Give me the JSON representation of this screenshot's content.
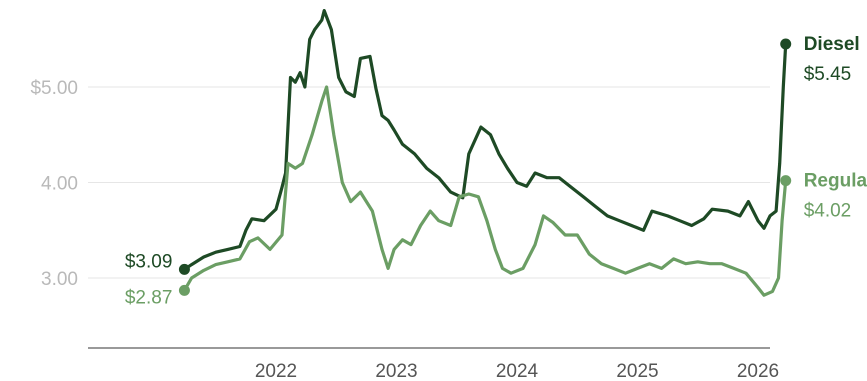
{
  "chart_data": {
    "type": "line",
    "title": "",
    "xlabel": "",
    "ylabel": "",
    "ylim": [
      2.3,
      6.0
    ],
    "y_ticks": [
      {
        "value": 3.0,
        "label": "3.00"
      },
      {
        "value": 4.0,
        "label": "4.00"
      },
      {
        "value": 5.0,
        "label": "$5.00"
      }
    ],
    "x_ticks": [
      {
        "value": 2022.0,
        "label": "2022"
      },
      {
        "value": 2023.0,
        "label": "2023"
      },
      {
        "value": 2024.0,
        "label": "2024"
      },
      {
        "value": 2025.0,
        "label": "2025"
      },
      {
        "value": 2026.0,
        "label": "2026"
      }
    ],
    "xlim": [
      2020.6,
      2026.55
    ],
    "grid": true,
    "series": [
      {
        "name": "Diesel",
        "color": "#1e4a25",
        "start_label": "$3.09",
        "end_label": "$5.45",
        "points": [
          [
            2021.24,
            3.09
          ],
          [
            2021.3,
            3.14
          ],
          [
            2021.4,
            3.22
          ],
          [
            2021.5,
            3.27
          ],
          [
            2021.6,
            3.3
          ],
          [
            2021.7,
            3.33
          ],
          [
            2021.75,
            3.5
          ],
          [
            2021.8,
            3.62
          ],
          [
            2021.9,
            3.6
          ],
          [
            2022.0,
            3.72
          ],
          [
            2022.05,
            3.95
          ],
          [
            2022.08,
            4.1
          ],
          [
            2022.12,
            5.1
          ],
          [
            2022.16,
            5.05
          ],
          [
            2022.2,
            5.15
          ],
          [
            2022.24,
            5.0
          ],
          [
            2022.28,
            5.5
          ],
          [
            2022.32,
            5.6
          ],
          [
            2022.38,
            5.7
          ],
          [
            2022.4,
            5.8
          ],
          [
            2022.46,
            5.6
          ],
          [
            2022.52,
            5.1
          ],
          [
            2022.58,
            4.95
          ],
          [
            2022.65,
            4.9
          ],
          [
            2022.7,
            5.3
          ],
          [
            2022.78,
            5.32
          ],
          [
            2022.83,
            4.98
          ],
          [
            2022.88,
            4.7
          ],
          [
            2022.93,
            4.65
          ],
          [
            2022.98,
            4.55
          ],
          [
            2023.05,
            4.4
          ],
          [
            2023.15,
            4.3
          ],
          [
            2023.25,
            4.15
          ],
          [
            2023.35,
            4.05
          ],
          [
            2023.45,
            3.9
          ],
          [
            2023.55,
            3.84
          ],
          [
            2023.6,
            4.3
          ],
          [
            2023.7,
            4.58
          ],
          [
            2023.78,
            4.5
          ],
          [
            2023.85,
            4.3
          ],
          [
            2023.92,
            4.15
          ],
          [
            2024.0,
            4.0
          ],
          [
            2024.08,
            3.96
          ],
          [
            2024.15,
            4.1
          ],
          [
            2024.25,
            4.05
          ],
          [
            2024.35,
            4.05
          ],
          [
            2024.45,
            3.95
          ],
          [
            2024.55,
            3.85
          ],
          [
            2024.65,
            3.75
          ],
          [
            2024.75,
            3.65
          ],
          [
            2024.85,
            3.6
          ],
          [
            2024.95,
            3.55
          ],
          [
            2025.05,
            3.5
          ],
          [
            2025.12,
            3.7
          ],
          [
            2025.25,
            3.65
          ],
          [
            2025.35,
            3.6
          ],
          [
            2025.45,
            3.55
          ],
          [
            2025.55,
            3.62
          ],
          [
            2025.62,
            3.72
          ],
          [
            2025.75,
            3.7
          ],
          [
            2025.85,
            3.65
          ],
          [
            2025.92,
            3.8
          ],
          [
            2026.0,
            3.6
          ],
          [
            2026.05,
            3.52
          ],
          [
            2026.1,
            3.65
          ],
          [
            2026.15,
            3.7
          ],
          [
            2026.18,
            4.2
          ],
          [
            2026.21,
            5.0
          ],
          [
            2026.23,
            5.45
          ]
        ]
      },
      {
        "name": "Regular",
        "color": "#6b9e64",
        "start_label": "$2.87",
        "end_label": "$4.02",
        "points": [
          [
            2021.24,
            2.87
          ],
          [
            2021.3,
            3.0
          ],
          [
            2021.4,
            3.08
          ],
          [
            2021.5,
            3.14
          ],
          [
            2021.6,
            3.17
          ],
          [
            2021.7,
            3.2
          ],
          [
            2021.78,
            3.38
          ],
          [
            2021.85,
            3.42
          ],
          [
            2021.95,
            3.3
          ],
          [
            2022.05,
            3.45
          ],
          [
            2022.1,
            4.2
          ],
          [
            2022.16,
            4.15
          ],
          [
            2022.22,
            4.2
          ],
          [
            2022.3,
            4.5
          ],
          [
            2022.38,
            4.85
          ],
          [
            2022.42,
            5.0
          ],
          [
            2022.48,
            4.5
          ],
          [
            2022.55,
            4.0
          ],
          [
            2022.62,
            3.8
          ],
          [
            2022.7,
            3.9
          ],
          [
            2022.8,
            3.7
          ],
          [
            2022.88,
            3.3
          ],
          [
            2022.93,
            3.1
          ],
          [
            2022.98,
            3.3
          ],
          [
            2023.05,
            3.4
          ],
          [
            2023.12,
            3.35
          ],
          [
            2023.2,
            3.55
          ],
          [
            2023.28,
            3.7
          ],
          [
            2023.35,
            3.6
          ],
          [
            2023.45,
            3.55
          ],
          [
            2023.52,
            3.85
          ],
          [
            2023.6,
            3.88
          ],
          [
            2023.68,
            3.85
          ],
          [
            2023.75,
            3.6
          ],
          [
            2023.82,
            3.3
          ],
          [
            2023.88,
            3.1
          ],
          [
            2023.95,
            3.05
          ],
          [
            2024.05,
            3.1
          ],
          [
            2024.15,
            3.35
          ],
          [
            2024.22,
            3.65
          ],
          [
            2024.3,
            3.58
          ],
          [
            2024.4,
            3.45
          ],
          [
            2024.5,
            3.45
          ],
          [
            2024.6,
            3.25
          ],
          [
            2024.7,
            3.15
          ],
          [
            2024.8,
            3.1
          ],
          [
            2024.9,
            3.05
          ],
          [
            2025.0,
            3.1
          ],
          [
            2025.1,
            3.15
          ],
          [
            2025.2,
            3.1
          ],
          [
            2025.3,
            3.2
          ],
          [
            2025.4,
            3.15
          ],
          [
            2025.5,
            3.17
          ],
          [
            2025.6,
            3.15
          ],
          [
            2025.7,
            3.15
          ],
          [
            2025.8,
            3.1
          ],
          [
            2025.9,
            3.05
          ],
          [
            2026.0,
            2.9
          ],
          [
            2026.05,
            2.82
          ],
          [
            2026.12,
            2.86
          ],
          [
            2026.17,
            3.0
          ],
          [
            2026.2,
            3.6
          ],
          [
            2026.23,
            4.02
          ]
        ]
      }
    ]
  }
}
